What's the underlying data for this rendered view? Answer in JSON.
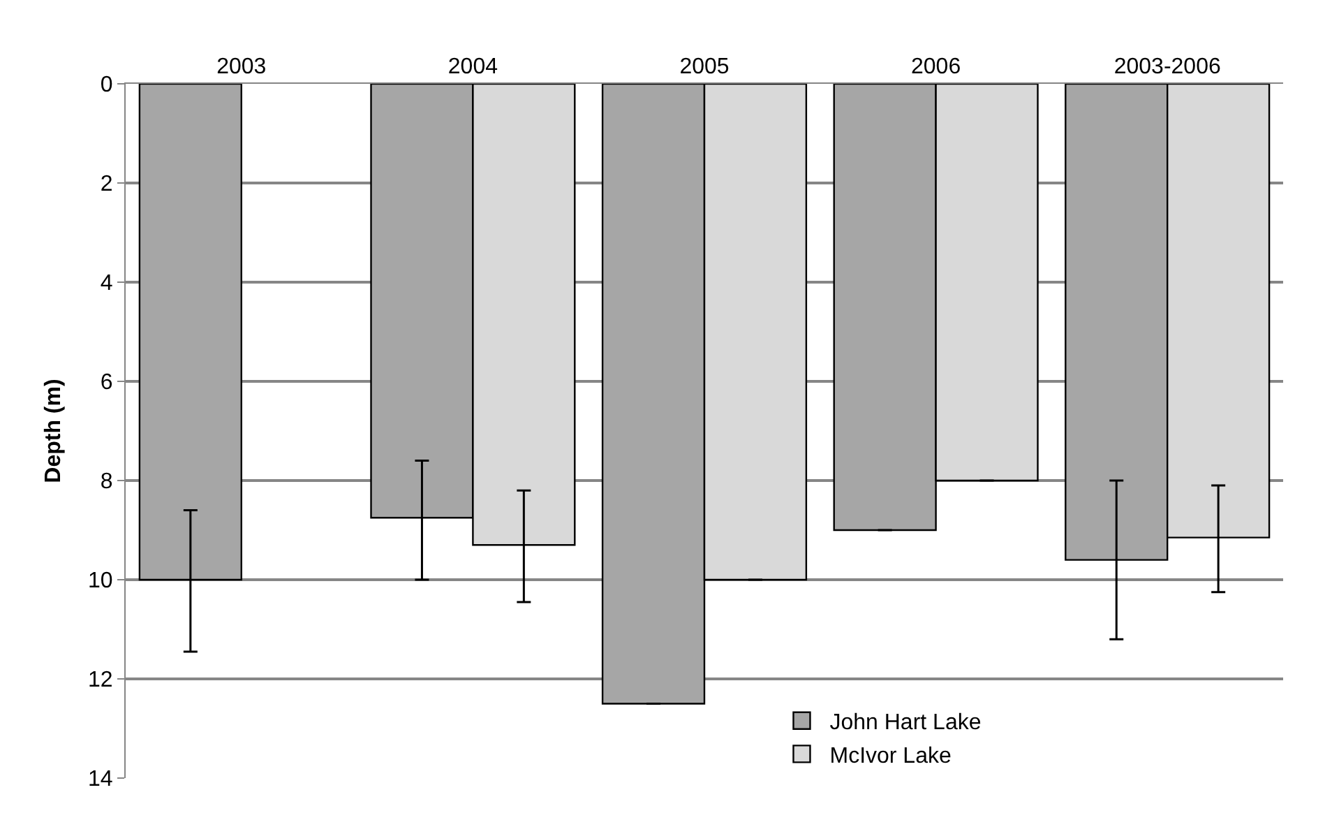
{
  "chart_data": {
    "type": "bar",
    "ylabel": "Depth (m)",
    "categories": [
      "2003",
      "2004",
      "2005",
      "2006",
      "2003-2006"
    ],
    "series": [
      {
        "name": "John Hart Lake",
        "color": "#a6a6a6",
        "values": [
          10,
          8.75,
          12.5,
          9,
          9.6
        ],
        "errors": [
          [
            8.6,
            11.45
          ],
          [
            7.6,
            10
          ],
          null,
          null,
          [
            8,
            11.2
          ]
        ]
      },
      {
        "name": "McIvor Lake",
        "color": "#d9d9d9",
        "values": [
          null,
          9.3,
          10,
          8,
          9.15
        ],
        "errors": [
          null,
          [
            8.2,
            10.45
          ],
          null,
          null,
          [
            8.1,
            10.25
          ]
        ]
      }
    ],
    "ylim": [
      14,
      0
    ],
    "yticks": [
      0,
      2,
      4,
      6,
      8,
      10,
      12,
      14
    ],
    "grid": "y",
    "legend": "bottom right"
  }
}
